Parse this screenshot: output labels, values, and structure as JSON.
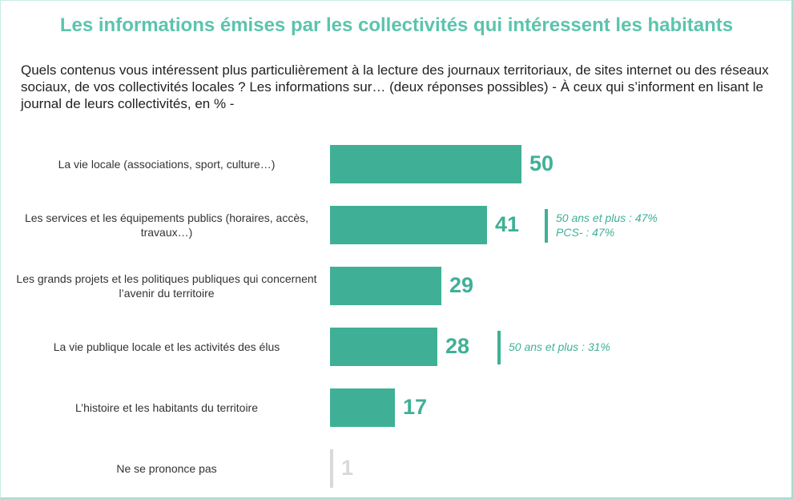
{
  "chart_data": {
    "type": "bar",
    "orientation": "horizontal",
    "title": "Les informations émises par les collectivités qui intéressent les habitants",
    "subtitle": "Quels contenus vous intéressent plus particulièrement à la lecture des journaux territoriaux, de sites internet ou des réseaux sociaux, de vos collectivités locales ? Les informations sur… (deux réponses possibles) - À ceux qui s’informent en lisant le journal de leurs collectivités, en % -",
    "categories": [
      "La vie locale (associations, sport, culture…)",
      "Les services et les équipements publics (horaires, accès, travaux…)",
      "Les grands projets et les politiques publiques qui concernent l’avenir du territoire",
      "La vie publique locale et les activités des élus",
      "L’histoire et les habitants du territoire",
      "Ne se prononce pas"
    ],
    "values": [
      50,
      41,
      29,
      28,
      17,
      1
    ],
    "value_labels": [
      "50",
      "41",
      "29",
      "28",
      "17",
      "1"
    ],
    "annotations": [
      {
        "category_index": 1,
        "lines": [
          "50 ans et plus : 47%",
          "PCS- : 47%"
        ]
      },
      {
        "category_index": 3,
        "lines": [
          "50 ans et plus : 31%"
        ]
      }
    ],
    "xlabel": "",
    "ylabel": "",
    "xlim": [
      0,
      50
    ],
    "grid": false,
    "colors": {
      "bar": "#3fb096",
      "muted": "#d9d9d9",
      "title": "#5bc4ad"
    }
  }
}
